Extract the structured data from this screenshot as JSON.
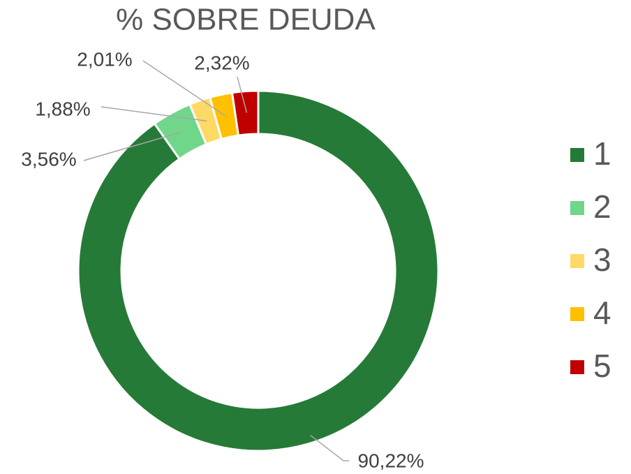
{
  "chart_data": {
    "type": "donut",
    "title": "% SOBRE DEUDA",
    "categories": [
      "1",
      "2",
      "3",
      "4",
      "5"
    ],
    "values": [
      90.22,
      3.56,
      1.88,
      2.01,
      2.32
    ],
    "value_labels": [
      "90,22%",
      "3,56%",
      "1,88%",
      "2,01%",
      "2,32%"
    ],
    "colors": [
      "#267a37",
      "#70d68a",
      "#ffd966",
      "#ffc000",
      "#c00000"
    ],
    "legend": "right"
  }
}
